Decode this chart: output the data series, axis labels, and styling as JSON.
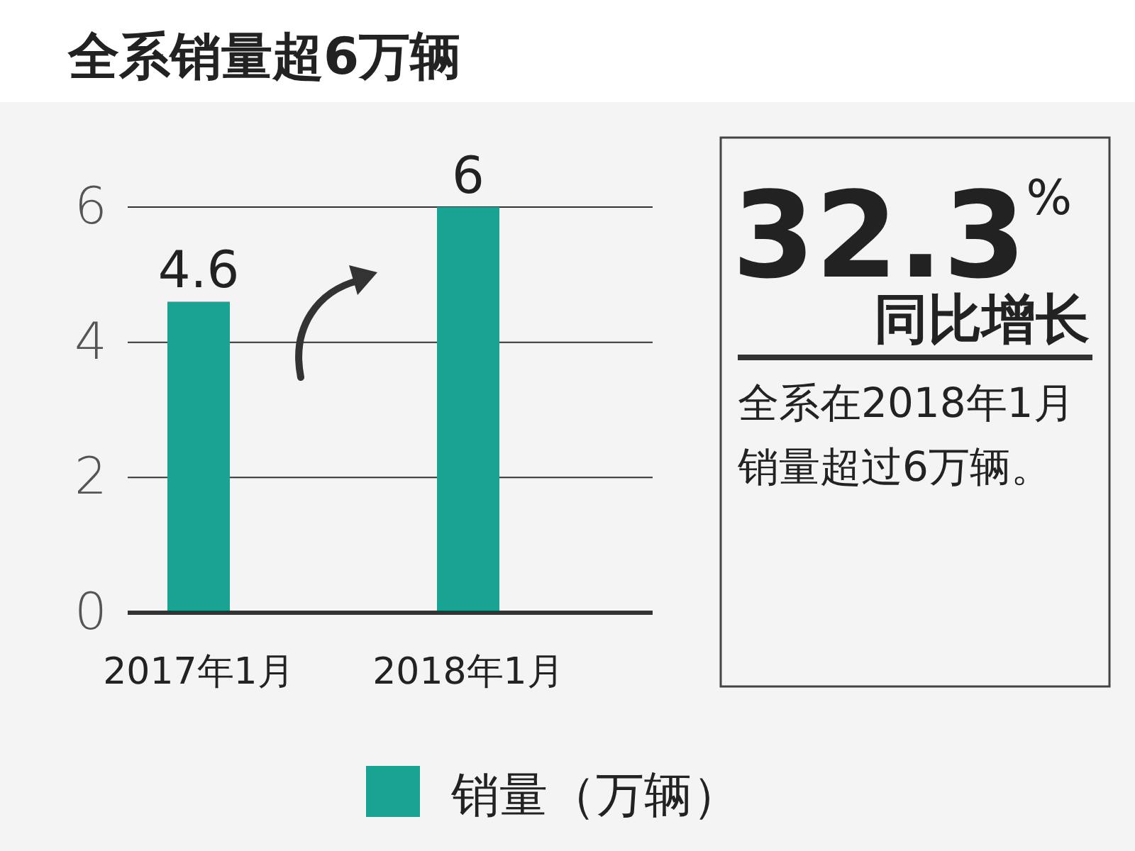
{
  "chart_data": [
    {
      "type": "bar",
      "title": "全系销量超6万辆",
      "categories": [
        "2017年1月",
        "2018年1月"
      ],
      "series": [
        {
          "name": "销量（万辆）",
          "color": "#19a393",
          "values": [
            4.6,
            6
          ]
        }
      ],
      "ylim": [
        0,
        6
      ],
      "yticks": [
        0,
        2,
        4,
        6
      ],
      "grid": "y",
      "data_labels": true,
      "legend": "bottom"
    },
    {
      "type": "other",
      "annotations": [
        "32.3$^{%}$",
        "同比增长",
        "全系在2018年1月销量超过6万辆。"
      ]
    }
  ]
}
